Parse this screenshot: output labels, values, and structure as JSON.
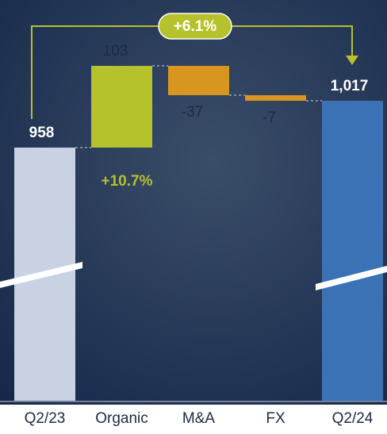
{
  "chart_data": {
    "type": "waterfall",
    "categories": [
      "Q2/23",
      "Organic",
      "M&A",
      "FX",
      "Q2/24"
    ],
    "values": [
      958,
      103,
      -37,
      -7,
      1017
    ],
    "value_labels": [
      "958",
      "103",
      "-37",
      "-7",
      "1,017"
    ],
    "colors": [
      "#c8d2e2",
      "#b5c22b",
      "#d8951f",
      "#d8951f",
      "#3b72b6"
    ],
    "ylim": [
      639,
      1100
    ],
    "annotations": [
      "+6.1%",
      "+10.7%"
    ]
  }
}
